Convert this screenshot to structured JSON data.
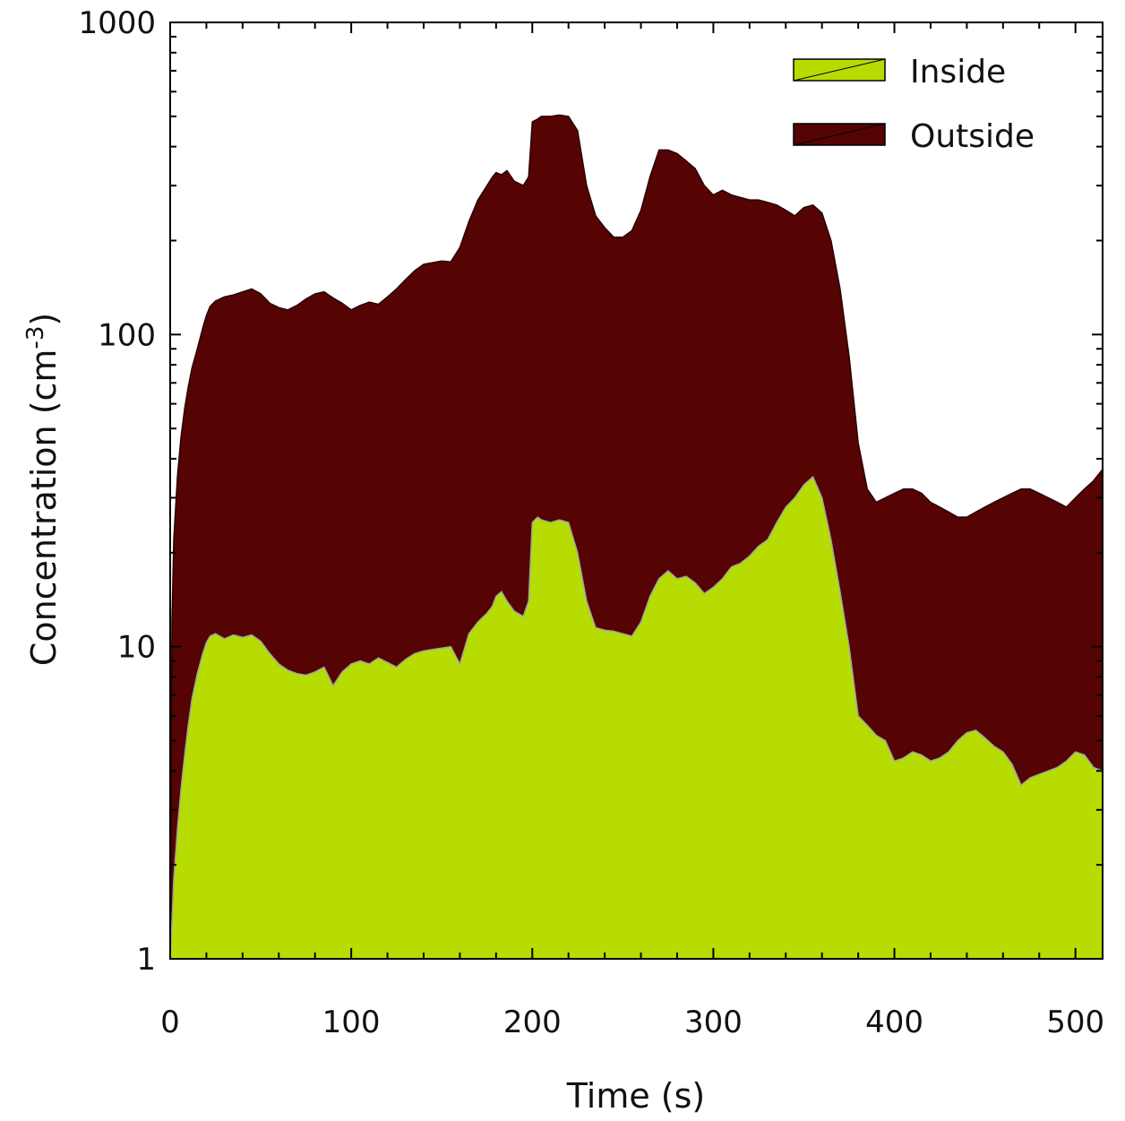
{
  "chart_data": {
    "type": "area",
    "xlabel": "Time (s)",
    "ylabel": {
      "base": "Concentration (cm",
      "sup": "-3",
      "end": ")"
    },
    "xlim": [
      0,
      515
    ],
    "ylim": [
      1,
      1000
    ],
    "yscale": "log",
    "xticks": [
      0,
      100,
      200,
      300,
      400,
      500
    ],
    "yticks": [
      1,
      10,
      100,
      1000
    ],
    "xtick_labels": [
      "0",
      "100",
      "200",
      "300",
      "400",
      "500"
    ],
    "ytick_labels": [
      "1",
      "10",
      "100",
      "1000"
    ],
    "legend_position": "top-right",
    "series": [
      {
        "name": "Outside",
        "color": "#560303",
        "x": [
          0,
          1,
          2,
          4,
          6,
          8,
          10,
          12,
          15,
          18,
          20,
          22,
          25,
          30,
          35,
          40,
          45,
          50,
          55,
          60,
          65,
          70,
          75,
          80,
          85,
          90,
          95,
          100,
          105,
          110,
          115,
          120,
          125,
          130,
          135,
          140,
          145,
          150,
          155,
          160,
          165,
          170,
          175,
          178,
          180,
          183,
          186,
          190,
          195,
          198,
          200,
          203,
          205,
          210,
          215,
          220,
          225,
          230,
          235,
          240,
          245,
          250,
          255,
          260,
          265,
          270,
          275,
          280,
          285,
          290,
          295,
          300,
          305,
          310,
          315,
          320,
          325,
          330,
          335,
          340,
          345,
          350,
          355,
          360,
          365,
          370,
          375,
          380,
          385,
          390,
          395,
          400,
          405,
          410,
          415,
          420,
          425,
          430,
          435,
          440,
          445,
          450,
          455,
          460,
          465,
          470,
          475,
          480,
          485,
          490,
          495,
          500,
          505,
          510,
          515
        ],
        "y": [
          1,
          12,
          22,
          35,
          47,
          58,
          68,
          78,
          90,
          105,
          115,
          123,
          128,
          132,
          134,
          137,
          140,
          135,
          126,
          122,
          120,
          124,
          130,
          135,
          137,
          131,
          126,
          120,
          124,
          127,
          125,
          132,
          140,
          150,
          160,
          168,
          170,
          172,
          171,
          190,
          230,
          270,
          300,
          320,
          330,
          325,
          335,
          310,
          300,
          320,
          480,
          490,
          500,
          500,
          505,
          500,
          450,
          300,
          240,
          220,
          205,
          205,
          215,
          250,
          320,
          390,
          390,
          380,
          360,
          340,
          300,
          280,
          290,
          280,
          275,
          270,
          270,
          265,
          260,
          250,
          240,
          255,
          260,
          245,
          200,
          140,
          85,
          45,
          32,
          29,
          30,
          31,
          32,
          32,
          31,
          29,
          28,
          27,
          26,
          26,
          27,
          28,
          29,
          30,
          31,
          32,
          32,
          31,
          30,
          29,
          28,
          30,
          32,
          34,
          37
        ]
      },
      {
        "name": "Inside",
        "color": "#b7dc02",
        "x": [
          0,
          1,
          2,
          4,
          6,
          8,
          10,
          12,
          15,
          18,
          20,
          22,
          25,
          30,
          35,
          40,
          45,
          50,
          55,
          60,
          65,
          70,
          75,
          80,
          85,
          90,
          95,
          100,
          105,
          110,
          115,
          120,
          125,
          130,
          135,
          140,
          145,
          150,
          155,
          160,
          165,
          170,
          175,
          178,
          180,
          183,
          186,
          190,
          195,
          198,
          200,
          203,
          205,
          210,
          215,
          220,
          225,
          230,
          235,
          240,
          245,
          250,
          255,
          260,
          265,
          270,
          275,
          280,
          285,
          290,
          295,
          300,
          305,
          310,
          315,
          320,
          325,
          330,
          335,
          340,
          345,
          350,
          355,
          360,
          365,
          370,
          375,
          380,
          385,
          390,
          395,
          400,
          405,
          410,
          415,
          420,
          425,
          430,
          435,
          440,
          445,
          450,
          455,
          460,
          465,
          470,
          475,
          480,
          485,
          490,
          495,
          500,
          505,
          510,
          515
        ],
        "y": [
          1,
          1.3,
          1.8,
          2.6,
          3.5,
          4.5,
          5.6,
          6.8,
          8.2,
          9.5,
          10.3,
          10.8,
          11.0,
          10.6,
          10.9,
          10.7,
          10.9,
          10.4,
          9.5,
          8.8,
          8.4,
          8.2,
          8.1,
          8.3,
          8.6,
          7.5,
          8.3,
          8.8,
          9.0,
          8.8,
          9.2,
          8.9,
          8.6,
          9.1,
          9.5,
          9.7,
          9.8,
          9.9,
          10.0,
          8.8,
          11.0,
          12.0,
          12.8,
          13.5,
          14.5,
          15.0,
          14.0,
          13.0,
          12.5,
          14.0,
          25.0,
          26.0,
          25.5,
          25.0,
          25.5,
          25.0,
          20.0,
          14.0,
          11.5,
          11.3,
          11.2,
          11.0,
          10.8,
          12.0,
          14.5,
          16.5,
          17.5,
          16.5,
          16.8,
          16.0,
          14.8,
          15.5,
          16.5,
          18.0,
          18.5,
          19.5,
          21.0,
          22.0,
          25.0,
          28.0,
          30.0,
          33.0,
          35.0,
          30.0,
          22.0,
          15.0,
          10.0,
          6.0,
          5.6,
          5.2,
          5.0,
          4.3,
          4.4,
          4.6,
          4.5,
          4.3,
          4.4,
          4.6,
          5.0,
          5.3,
          5.4,
          5.1,
          4.8,
          4.6,
          4.2,
          3.6,
          3.8,
          3.9,
          4.0,
          4.1,
          4.3,
          4.6,
          4.5,
          4.1,
          4.0
        ]
      }
    ]
  }
}
